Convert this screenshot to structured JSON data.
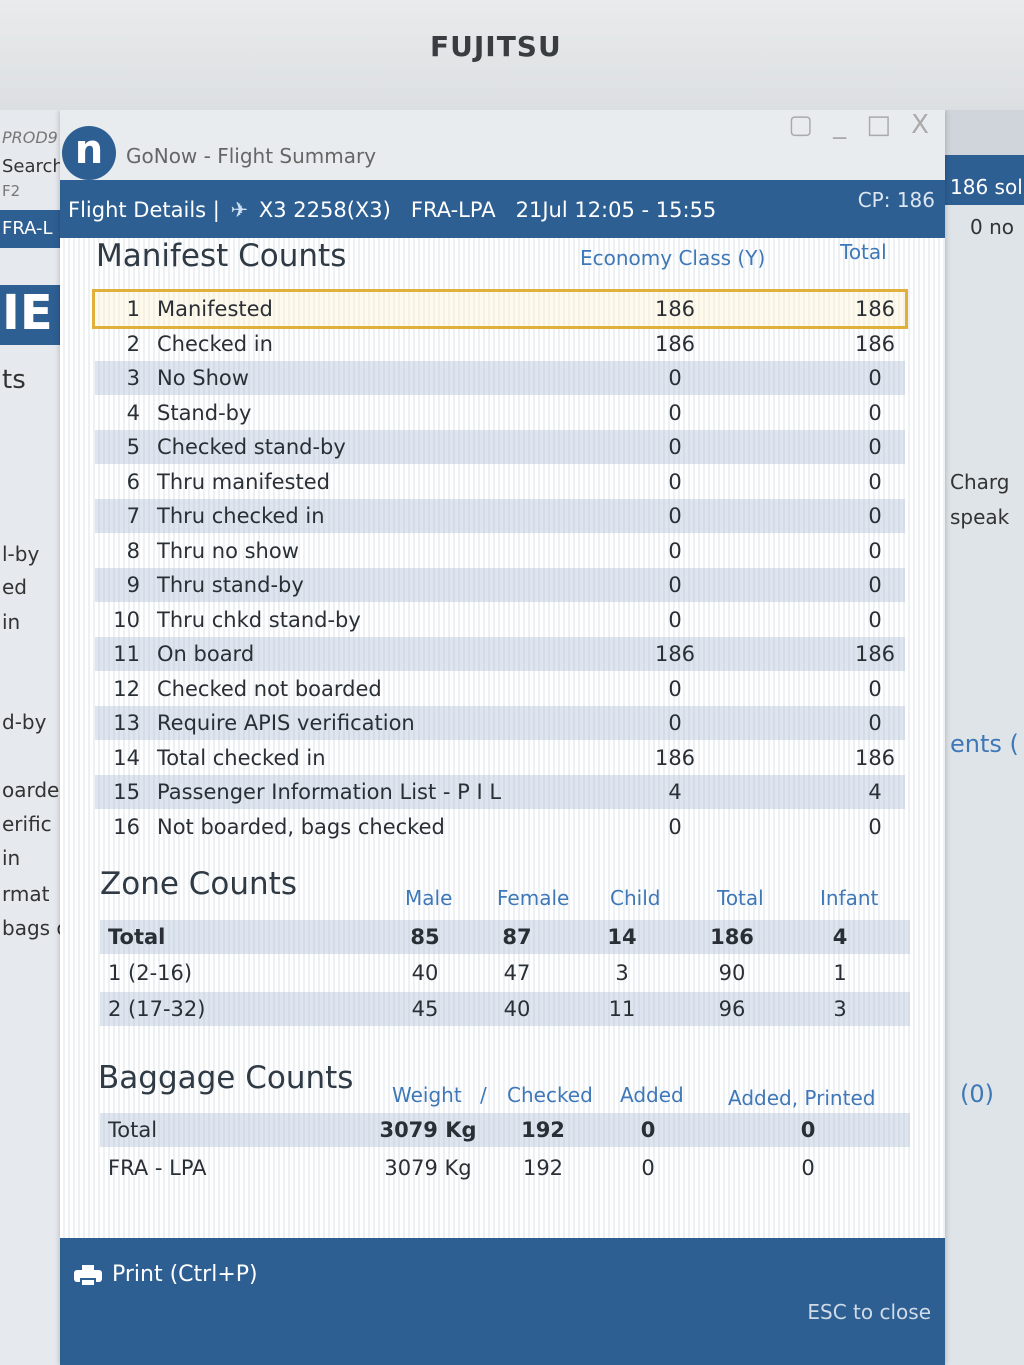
{
  "monitor": {
    "brand": "FUJITSU"
  },
  "background_left": {
    "lines": [
      "PROD9",
      "Search",
      "F2",
      "FRA-L",
      "IE",
      "ts",
      "l-by",
      "ed",
      "in",
      "d-by",
      "oarde",
      "erific",
      "in",
      "rmat",
      "bags c"
    ]
  },
  "background_right": {
    "lines": [
      "186 sol",
      "0 no",
      "Charg",
      "speak",
      "ents (",
      "(0)"
    ]
  },
  "window": {
    "logo": "n",
    "title": "GoNow - Flight Summary",
    "controls": "▢ _ □ X"
  },
  "header": {
    "section": "Flight Details |",
    "flight": "X3 2258(X3)",
    "route": "FRA-LPA",
    "time": "21Jul 12:05 - 15:55",
    "cp": "CP: 186"
  },
  "manifest": {
    "title": "Manifest Counts",
    "col1": "Economy Class (Y)",
    "col2": "Total",
    "rows": [
      {
        "num": "1",
        "label": "Manifested",
        "v1": "186",
        "v2": "186"
      },
      {
        "num": "2",
        "label": "Checked in",
        "v1": "186",
        "v2": "186"
      },
      {
        "num": "3",
        "label": "No Show",
        "v1": "0",
        "v2": "0"
      },
      {
        "num": "4",
        "label": "Stand-by",
        "v1": "0",
        "v2": "0"
      },
      {
        "num": "5",
        "label": "Checked stand-by",
        "v1": "0",
        "v2": "0"
      },
      {
        "num": "6",
        "label": "Thru manifested",
        "v1": "0",
        "v2": "0"
      },
      {
        "num": "7",
        "label": "Thru checked in",
        "v1": "0",
        "v2": "0"
      },
      {
        "num": "8",
        "label": "Thru no show",
        "v1": "0",
        "v2": "0"
      },
      {
        "num": "9",
        "label": "Thru stand-by",
        "v1": "0",
        "v2": "0"
      },
      {
        "num": "10",
        "label": "Thru chkd stand-by",
        "v1": "0",
        "v2": "0"
      },
      {
        "num": "11",
        "label": "On board",
        "v1": "186",
        "v2": "186"
      },
      {
        "num": "12",
        "label": "Checked not boarded",
        "v1": "0",
        "v2": "0"
      },
      {
        "num": "13",
        "label": "Require APIS verification",
        "v1": "0",
        "v2": "0"
      },
      {
        "num": "14",
        "label": "Total checked in",
        "v1": "186",
        "v2": "186"
      },
      {
        "num": "15",
        "label": "Passenger Information List - P I L",
        "v1": "4",
        "v2": "4"
      },
      {
        "num": "16",
        "label": "Not boarded, bags checked",
        "v1": "0",
        "v2": "0"
      }
    ]
  },
  "zones": {
    "title": "Zone Counts",
    "headers": [
      "Male",
      "Female",
      "Child",
      "Total",
      "Infant"
    ],
    "rows": [
      {
        "label": "Total",
        "values": [
          "85",
          "87",
          "14",
          "186",
          "4"
        ]
      },
      {
        "label": "1 (2-16)",
        "values": [
          "40",
          "47",
          "3",
          "90",
          "1"
        ]
      },
      {
        "label": "2 (17-32)",
        "values": [
          "45",
          "40",
          "11",
          "96",
          "3"
        ]
      }
    ]
  },
  "baggage": {
    "title": "Baggage Counts",
    "headers": [
      "Weight",
      "/",
      "Checked",
      "Added",
      "Added, Printed"
    ],
    "rows": [
      {
        "label": "Total",
        "weight": "3079 Kg",
        "checked": "192",
        "added": "0",
        "printed": "0"
      },
      {
        "label": "FRA - LPA",
        "weight": "3079 Kg",
        "checked": "192",
        "added": "0",
        "printed": "0"
      }
    ]
  },
  "footer": {
    "print": "Print (Ctrl+P)",
    "esc": "ESC to close"
  }
}
